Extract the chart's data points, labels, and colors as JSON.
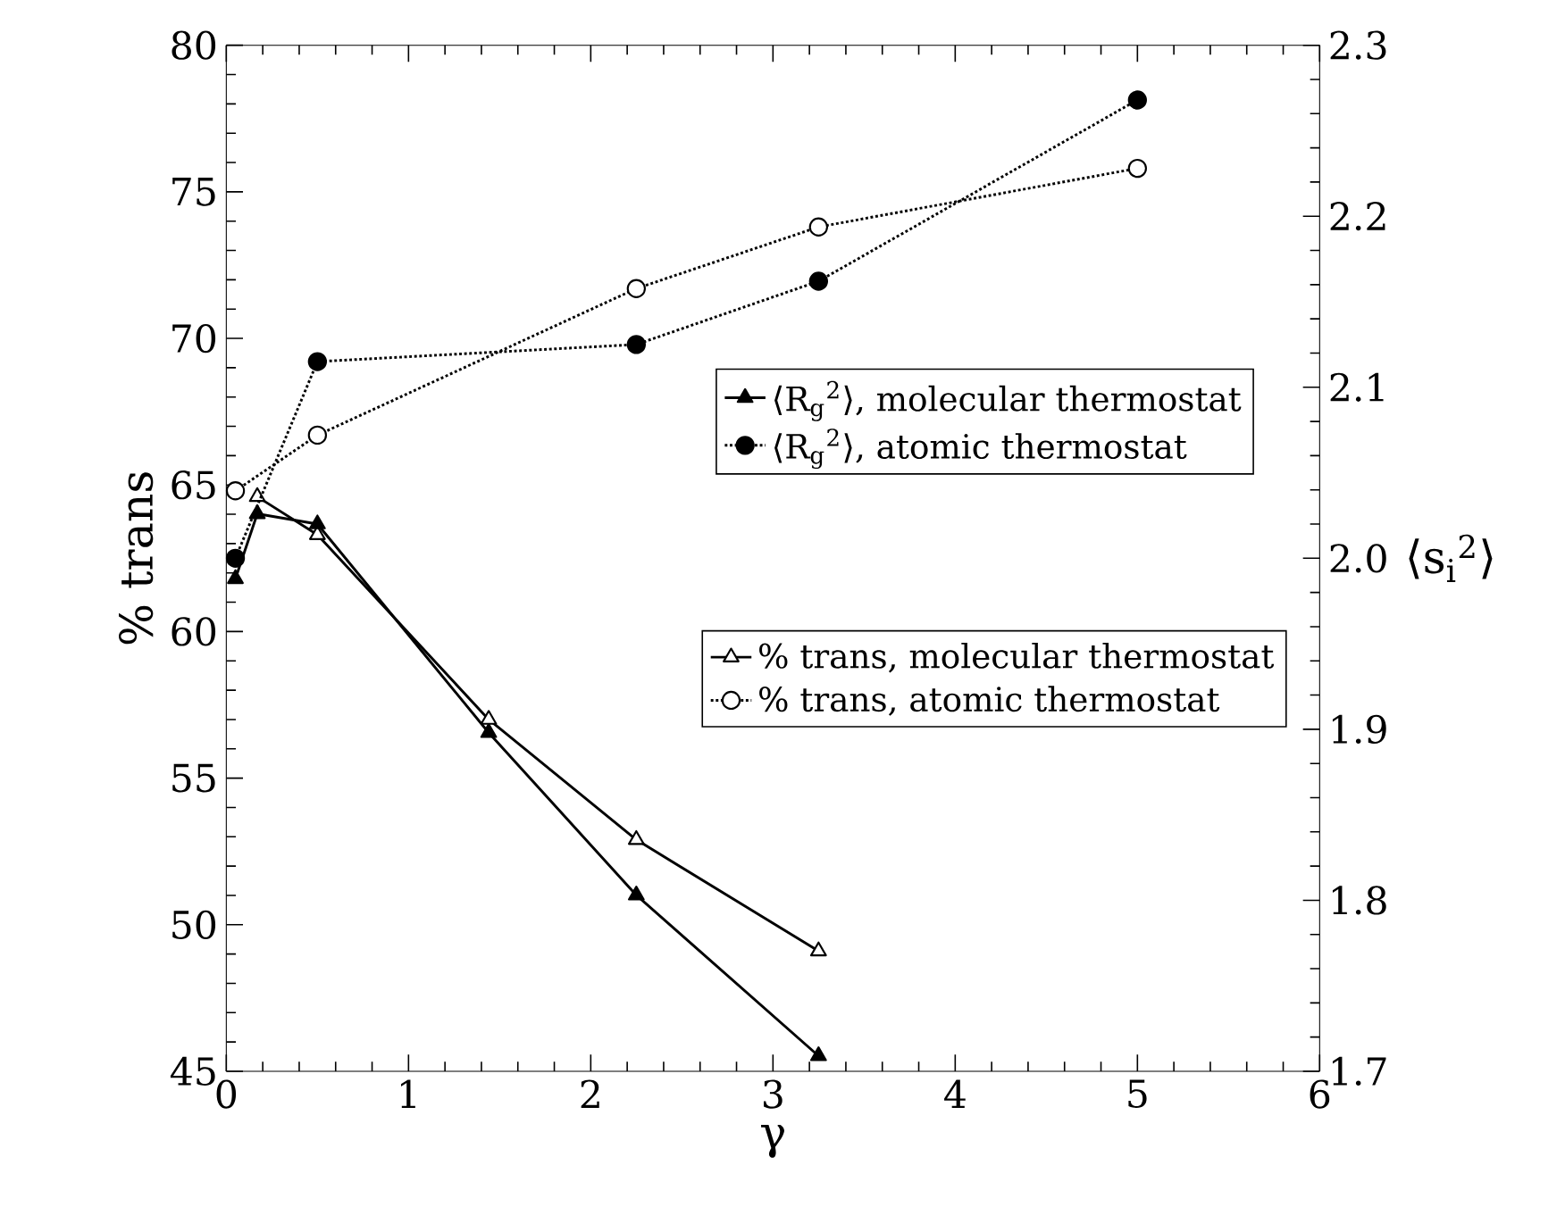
{
  "chart_data": {
    "type": "line",
    "xlabel": "γ",
    "ylabel": "% trans",
    "y2label": "⟨s$_{i}$$^{2}$⟩",
    "xlim": [
      0,
      6
    ],
    "xticks": [
      0,
      1,
      2,
      3,
      4,
      5,
      6
    ],
    "ylim": [
      45,
      80
    ],
    "yticks": [
      45,
      50,
      55,
      60,
      65,
      70,
      75,
      80
    ],
    "y2lim": [
      1.7,
      2.3
    ],
    "y2ticks": [
      1.7,
      1.8,
      1.9,
      {
        "value": 2.0,
        "label": "2.0"
      },
      2.1,
      2.2,
      2.3
    ],
    "grid": false,
    "legend": "right",
    "series": [
      {
        "name": "⟨R$_{g}$$^{2}$⟩, molecular thermostat",
        "color": "#000000",
        "marker": "triangle",
        "line_style": "solid",
        "axis": "y2",
        "x": [
          0.05,
          0.17,
          0.5,
          1.44,
          2.25,
          3.25
        ],
        "values": [
          1.988,
          2.026,
          2.02,
          1.898,
          1.803,
          1.709
        ]
      },
      {
        "name": "⟨R$_{g}$$^{2}$⟩, atomic thermostat",
        "color": "#000000",
        "marker": "circle",
        "line_style": "dotted",
        "axis": "y2",
        "x": [
          0.05,
          0.5,
          2.25,
          3.25,
          5
        ],
        "values": [
          2.0,
          2.115,
          2.125,
          2.162,
          2.268
        ]
      },
      {
        "name": "% trans, molecular thermostat",
        "color": "#000000",
        "marker": "triangle",
        "line_style": "solid",
        "x": [
          0.17,
          0.5,
          1.44,
          2.25,
          3.25
        ],
        "values": [
          64.6,
          63.3,
          57.0,
          52.9,
          49.1
        ]
      },
      {
        "name": "% trans, atomic thermostat",
        "color": "#000000",
        "marker": "circle",
        "line_style": "dotted",
        "x": [
          0.05,
          0.5,
          2.25,
          3.25,
          5
        ],
        "values": [
          64.8,
          66.7,
          71.7,
          73.8,
          75.8
        ]
      }
    ]
  }
}
